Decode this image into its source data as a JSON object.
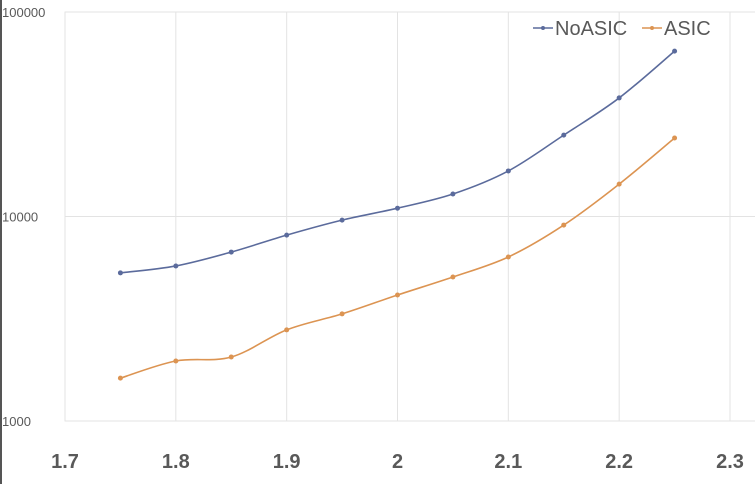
{
  "chart_data": {
    "type": "line",
    "title": "",
    "xlabel": "",
    "ylabel": "",
    "x": [
      1.75,
      1.8,
      1.85,
      1.9,
      1.95,
      2.0,
      2.05,
      2.1,
      2.15,
      2.2,
      2.25
    ],
    "xlim": [
      1.7,
      2.3
    ],
    "ylim": [
      1000,
      100000
    ],
    "yscale": "log",
    "x_ticks": [
      "1.7",
      "1.8",
      "1.9",
      "2",
      "2.1",
      "2.2",
      "2.3"
    ],
    "y_ticks": [
      "1000",
      "10000",
      "100000"
    ],
    "grid": true,
    "legend_position": "top-right",
    "series": [
      {
        "name": "NoASIC",
        "color": "#5b6b9c",
        "values": [
          5300,
          5730,
          6700,
          8110,
          9600,
          10980,
          12880,
          16700,
          25000,
          38000,
          64400
        ]
      },
      {
        "name": "ASIC",
        "color": "#dc9452",
        "values": [
          1620,
          1965,
          2055,
          2790,
          3340,
          4130,
          5060,
          6340,
          9080,
          14400,
          24200
        ]
      }
    ]
  }
}
